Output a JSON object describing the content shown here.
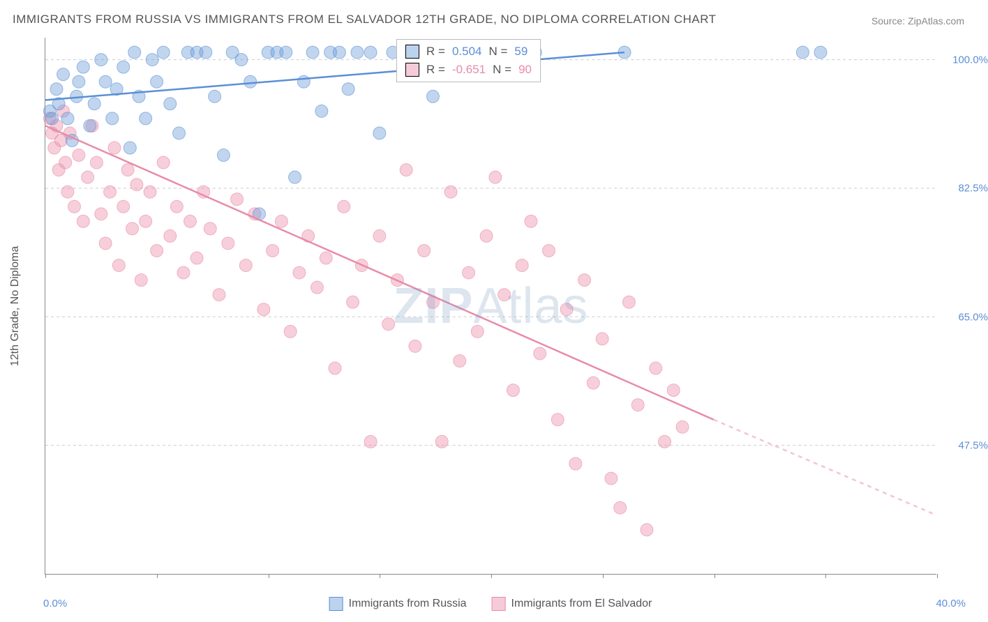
{
  "title": "IMMIGRANTS FROM RUSSIA VS IMMIGRANTS FROM EL SALVADOR 12TH GRADE, NO DIPLOMA CORRELATION CHART",
  "source": "Source: ZipAtlas.com",
  "ylabel": "12th Grade, No Diploma",
  "watermark_a": "ZIP",
  "watermark_b": "Atlas",
  "chart": {
    "type": "scatter",
    "xlim": [
      0,
      40
    ],
    "ylim": [
      30,
      103
    ],
    "x_tick_left": "0.0%",
    "x_tick_right": "40.0%",
    "x_tick_positions": [
      0,
      5,
      10,
      15,
      20,
      25,
      30,
      35,
      40
    ],
    "y_gridlines": [
      100,
      82.5,
      65,
      47.5
    ],
    "y_tick_labels": [
      "100.0%",
      "82.5%",
      "65.0%",
      "47.5%"
    ],
    "background_color": "#ffffff",
    "grid_color": "#cccccc",
    "marker_radius": 9,
    "marker_opacity": 0.42,
    "series": {
      "russia": {
        "label": "Immigrants from Russia",
        "color_fill": "#6b9dd6",
        "color_stroke": "#5b8fd6",
        "R": "0.504",
        "N": "59",
        "trend": {
          "x1": 0,
          "y1": 94.5,
          "x2": 26,
          "y2": 101,
          "dash_to": 26
        },
        "points": [
          [
            0.2,
            93
          ],
          [
            0.3,
            92
          ],
          [
            0.5,
            96
          ],
          [
            0.6,
            94
          ],
          [
            0.8,
            98
          ],
          [
            1.0,
            92
          ],
          [
            1.2,
            89
          ],
          [
            1.4,
            95
          ],
          [
            1.5,
            97
          ],
          [
            1.7,
            99
          ],
          [
            2.0,
            91
          ],
          [
            2.2,
            94
          ],
          [
            2.5,
            100
          ],
          [
            2.7,
            97
          ],
          [
            3.0,
            92
          ],
          [
            3.2,
            96
          ],
          [
            3.5,
            99
          ],
          [
            3.8,
            88
          ],
          [
            4.0,
            101
          ],
          [
            4.2,
            95
          ],
          [
            4.5,
            92
          ],
          [
            4.8,
            100
          ],
          [
            5.0,
            97
          ],
          [
            5.3,
            101
          ],
          [
            5.6,
            94
          ],
          [
            6.0,
            90
          ],
          [
            6.4,
            101
          ],
          [
            6.8,
            101
          ],
          [
            7.2,
            101
          ],
          [
            7.6,
            95
          ],
          [
            8.0,
            87
          ],
          [
            8.4,
            101
          ],
          [
            8.8,
            100
          ],
          [
            9.2,
            97
          ],
          [
            9.6,
            79
          ],
          [
            10.0,
            101
          ],
          [
            10.4,
            101
          ],
          [
            10.8,
            101
          ],
          [
            11.2,
            84
          ],
          [
            11.6,
            97
          ],
          [
            12.0,
            101
          ],
          [
            12.4,
            93
          ],
          [
            12.8,
            101
          ],
          [
            13.2,
            101
          ],
          [
            13.6,
            96
          ],
          [
            14.0,
            101
          ],
          [
            14.6,
            101
          ],
          [
            15.0,
            90
          ],
          [
            15.6,
            101
          ],
          [
            16.2,
            101
          ],
          [
            16.8,
            101
          ],
          [
            17.4,
            95
          ],
          [
            18.0,
            101
          ],
          [
            19.0,
            101
          ],
          [
            20.0,
            101
          ],
          [
            22.0,
            101
          ],
          [
            26.0,
            101
          ],
          [
            34.0,
            101
          ],
          [
            34.8,
            101
          ]
        ]
      },
      "elsalvador": {
        "label": "Immigrants from El Salvador",
        "color_fill": "#ec8caa",
        "color_stroke": "#e88ba8",
        "R": "-0.651",
        "N": "90",
        "trend": {
          "x1": 0,
          "y1": 91,
          "x2": 30,
          "y2": 51,
          "dash_to": 40,
          "dash_y": 38
        },
        "points": [
          [
            0.2,
            92
          ],
          [
            0.3,
            90
          ],
          [
            0.4,
            88
          ],
          [
            0.5,
            91
          ],
          [
            0.6,
            85
          ],
          [
            0.7,
            89
          ],
          [
            0.8,
            93
          ],
          [
            0.9,
            86
          ],
          [
            1.0,
            82
          ],
          [
            1.1,
            90
          ],
          [
            1.3,
            80
          ],
          [
            1.5,
            87
          ],
          [
            1.7,
            78
          ],
          [
            1.9,
            84
          ],
          [
            2.1,
            91
          ],
          [
            2.3,
            86
          ],
          [
            2.5,
            79
          ],
          [
            2.7,
            75
          ],
          [
            2.9,
            82
          ],
          [
            3.1,
            88
          ],
          [
            3.3,
            72
          ],
          [
            3.5,
            80
          ],
          [
            3.7,
            85
          ],
          [
            3.9,
            77
          ],
          [
            4.1,
            83
          ],
          [
            4.3,
            70
          ],
          [
            4.5,
            78
          ],
          [
            4.7,
            82
          ],
          [
            5.0,
            74
          ],
          [
            5.3,
            86
          ],
          [
            5.6,
            76
          ],
          [
            5.9,
            80
          ],
          [
            6.2,
            71
          ],
          [
            6.5,
            78
          ],
          [
            6.8,
            73
          ],
          [
            7.1,
            82
          ],
          [
            7.4,
            77
          ],
          [
            7.8,
            68
          ],
          [
            8.2,
            75
          ],
          [
            8.6,
            81
          ],
          [
            9.0,
            72
          ],
          [
            9.4,
            79
          ],
          [
            9.8,
            66
          ],
          [
            10.2,
            74
          ],
          [
            10.6,
            78
          ],
          [
            11.0,
            63
          ],
          [
            11.4,
            71
          ],
          [
            11.8,
            76
          ],
          [
            12.2,
            69
          ],
          [
            12.6,
            73
          ],
          [
            13.0,
            58
          ],
          [
            13.4,
            80
          ],
          [
            13.8,
            67
          ],
          [
            14.2,
            72
          ],
          [
            14.6,
            48
          ],
          [
            15.0,
            76
          ],
          [
            15.4,
            64
          ],
          [
            15.8,
            70
          ],
          [
            16.2,
            85
          ],
          [
            16.6,
            61
          ],
          [
            17.0,
            74
          ],
          [
            17.4,
            67
          ],
          [
            17.8,
            48
          ],
          [
            18.2,
            82
          ],
          [
            18.6,
            59
          ],
          [
            19.0,
            71
          ],
          [
            19.4,
            63
          ],
          [
            19.8,
            76
          ],
          [
            20.2,
            84
          ],
          [
            20.6,
            68
          ],
          [
            21.0,
            55
          ],
          [
            21.4,
            72
          ],
          [
            21.8,
            78
          ],
          [
            22.2,
            60
          ],
          [
            22.6,
            74
          ],
          [
            23.0,
            51
          ],
          [
            23.4,
            66
          ],
          [
            23.8,
            45
          ],
          [
            24.2,
            70
          ],
          [
            24.6,
            56
          ],
          [
            25.0,
            62
          ],
          [
            25.4,
            43
          ],
          [
            25.8,
            39
          ],
          [
            26.2,
            67
          ],
          [
            26.6,
            53
          ],
          [
            27.0,
            36
          ],
          [
            27.4,
            58
          ],
          [
            27.8,
            48
          ],
          [
            28.2,
            55
          ],
          [
            28.6,
            50
          ]
        ]
      }
    }
  },
  "legend": {
    "russia": "Immigrants from Russia",
    "elsalvador": "Immigrants from El Salvador"
  },
  "stats_labels": {
    "R": "R =",
    "N": "N ="
  }
}
